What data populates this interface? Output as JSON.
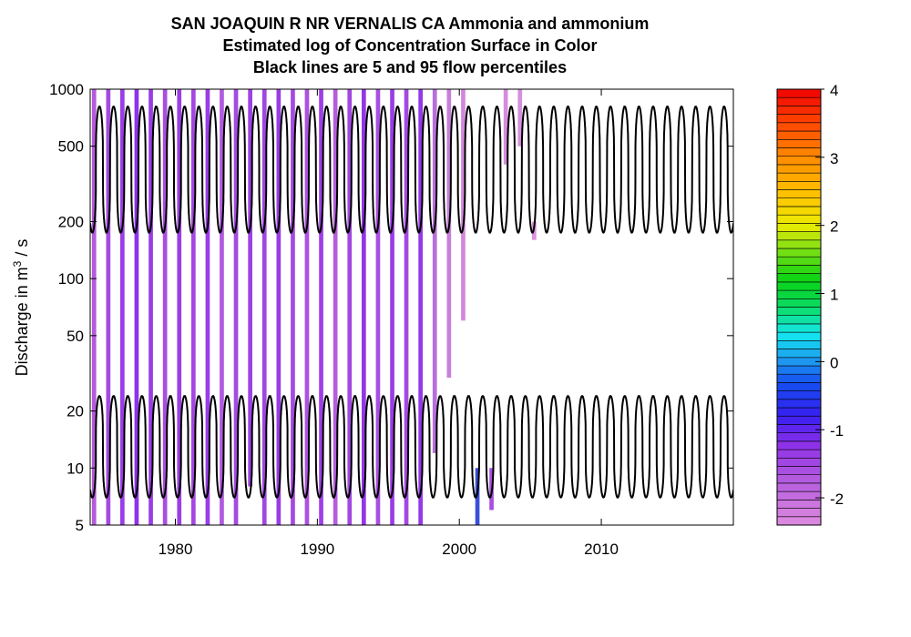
{
  "chart_data": {
    "type": "heatmap",
    "title": "SAN JOAQUIN R NR VERNALIS CA     Ammonia and ammonium",
    "subtitle": "Estimated log of Concentration Surface in Color",
    "note": "Black lines are 5 and 95 flow percentiles",
    "ylabel": "Discharge in m",
    "ylabel_sup": "3",
    "ylabel_tail": " / s",
    "y_scale": "log",
    "xlim": [
      1974,
      2019.3
    ],
    "ylim": [
      5,
      1000
    ],
    "x_ticks": [
      1980,
      1990,
      2000,
      2010
    ],
    "x_tick_labels": [
      "1980",
      "1990",
      "2000",
      "2010"
    ],
    "y_ticks": [
      5,
      10,
      20,
      50,
      100,
      200,
      500,
      1000
    ],
    "y_tick_labels": [
      "5",
      "10",
      "20",
      "50",
      "100",
      "200",
      "500",
      "1000"
    ],
    "colorbar": {
      "min": -2.4,
      "max": 4,
      "ticks": [
        -2,
        -1,
        0,
        1,
        2,
        3,
        4
      ],
      "tick_labels": [
        "-2",
        "-1",
        "0",
        "1",
        "2",
        "3",
        "4"
      ]
    },
    "percentile_lines": [
      {
        "name": "95 flow percentile",
        "low": 175,
        "high": 810
      },
      {
        "name": "5 flow percentile",
        "low": 7,
        "high": 24
      }
    ],
    "surface_bands": [
      {
        "year": 1974.0,
        "ymin": 5,
        "ymax": 1000,
        "color": "#b55adb"
      },
      {
        "year": 1975.0,
        "ymin": 5,
        "ymax": 1000,
        "color": "#a44ae0"
      },
      {
        "year": 1976.0,
        "ymin": 5,
        "ymax": 1000,
        "color": "#9b3de6"
      },
      {
        "year": 1977.0,
        "ymin": 5,
        "ymax": 1000,
        "color": "#8f33ea"
      },
      {
        "year": 1978.0,
        "ymin": 5,
        "ymax": 1000,
        "color": "#9a3ce6"
      },
      {
        "year": 1979.0,
        "ymin": 5,
        "ymax": 1000,
        "color": "#a94ee0"
      },
      {
        "year": 1980.0,
        "ymin": 5,
        "ymax": 1000,
        "color": "#9b3fe5"
      },
      {
        "year": 1981.0,
        "ymin": 5,
        "ymax": 1000,
        "color": "#a548e1"
      },
      {
        "year": 1982.0,
        "ymin": 5,
        "ymax": 1000,
        "color": "#9a3de6"
      },
      {
        "year": 1983.0,
        "ymin": 5,
        "ymax": 1000,
        "color": "#b15ade"
      },
      {
        "year": 1984.0,
        "ymin": 5,
        "ymax": 1000,
        "color": "#a34be2"
      },
      {
        "year": 1985.0,
        "ymin": 8,
        "ymax": 1000,
        "color": "#9d42e4"
      },
      {
        "year": 1986.0,
        "ymin": 5,
        "ymax": 1000,
        "color": "#a046e3"
      },
      {
        "year": 1987.0,
        "ymin": 5,
        "ymax": 1000,
        "color": "#9a3ce6"
      },
      {
        "year": 1988.0,
        "ymin": 5,
        "ymax": 1000,
        "color": "#a44ae2"
      },
      {
        "year": 1989.0,
        "ymin": 5,
        "ymax": 1000,
        "color": "#ac52df"
      },
      {
        "year": 1990.0,
        "ymin": 5,
        "ymax": 1000,
        "color": "#9c40e5"
      },
      {
        "year": 1991.0,
        "ymin": 5,
        "ymax": 1000,
        "color": "#b55ddc"
      },
      {
        "year": 1992.0,
        "ymin": 5,
        "ymax": 1000,
        "color": "#a248e2"
      },
      {
        "year": 1993.0,
        "ymin": 5,
        "ymax": 1000,
        "color": "#9436e8"
      },
      {
        "year": 1994.0,
        "ymin": 5,
        "ymax": 1000,
        "color": "#a94fe0"
      },
      {
        "year": 1995.0,
        "ymin": 5,
        "ymax": 1000,
        "color": "#9a3de6"
      },
      {
        "year": 1996.0,
        "ymin": 5,
        "ymax": 1000,
        "color": "#a449e1"
      },
      {
        "year": 1997.0,
        "ymin": 5,
        "ymax": 1000,
        "color": "#9538e8"
      },
      {
        "year": 1998.0,
        "ymin": 12,
        "ymax": 1000,
        "color": "#b86fdc"
      },
      {
        "year": 1999.0,
        "ymin": 30,
        "ymax": 1000,
        "color": "#c77fda"
      },
      {
        "year": 2000.0,
        "ymin": 60,
        "ymax": 1000,
        "color": "#d388dc"
      },
      {
        "year": 2001.0,
        "ymin": 5,
        "ymax": 10,
        "color": "#3a4fd8"
      },
      {
        "year": 2002.0,
        "ymin": 6,
        "ymax": 10,
        "color": "#a94fe0"
      },
      {
        "year": 2003.0,
        "ymin": 400,
        "ymax": 1000,
        "color": "#d58ddc"
      },
      {
        "year": 2004.0,
        "ymin": 500,
        "ymax": 1000,
        "color": "#d590dd"
      },
      {
        "year": 2005.0,
        "ymin": 160,
        "ymax": 200,
        "color": "#dd92de"
      }
    ]
  }
}
